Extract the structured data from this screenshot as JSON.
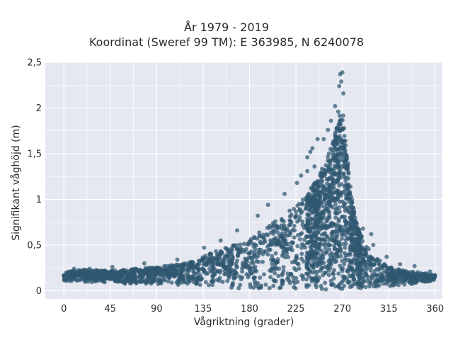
{
  "chart_data": {
    "type": "scatter",
    "title": "År 1979 - 2019",
    "subtitle": "Koordinat (Sweref 99 TM): E 363985, N 6240078",
    "xlabel": "Vågriktning (grader)",
    "ylabel": "Signifikant våghöjd (m)",
    "xlim": [
      -18,
      367
    ],
    "ylim": [
      -0.09,
      2.5
    ],
    "x_ticks": [
      0,
      45,
      90,
      135,
      180,
      225,
      270,
      315,
      360
    ],
    "x_tick_labels": [
      "0",
      "45",
      "90",
      "135",
      "180",
      "225",
      "270",
      "315",
      "360"
    ],
    "y_ticks": [
      0,
      0.5,
      1,
      1.5,
      2,
      2.5
    ],
    "y_tick_labels": [
      "0",
      "0,5",
      "1",
      "1,5",
      "2",
      "2,5"
    ],
    "grid": true,
    "series": [
      {
        "marker_color": "#2f5870",
        "envelope": {
          "x": [
            0,
            10,
            20,
            45,
            90,
            120,
            135,
            150,
            165,
            180,
            195,
            210,
            225,
            235,
            245,
            250,
            255,
            260,
            262,
            264,
            266,
            268,
            270,
            272,
            274,
            276,
            278,
            280,
            285,
            290,
            300,
            315,
            330,
            345,
            360
          ],
          "y_upper": [
            0.2,
            0.22,
            0.23,
            0.22,
            0.26,
            0.3,
            0.38,
            0.45,
            0.5,
            0.58,
            0.68,
            0.8,
            0.93,
            1.05,
            1.22,
            1.35,
            1.45,
            1.6,
            1.7,
            1.78,
            1.85,
            1.95,
            2.05,
            1.75,
            1.55,
            1.35,
            1.15,
            0.95,
            0.72,
            0.55,
            0.38,
            0.26,
            0.22,
            0.2,
            0.17
          ],
          "y_lower": [
            0.11,
            0.1,
            0.09,
            0.08,
            0.07,
            0.06,
            0.05,
            0.04,
            0.03,
            0.02,
            0.02,
            0.01,
            0.01,
            0.01,
            0.01,
            0.01,
            0.01,
            0.01,
            0.01,
            0.01,
            0.01,
            0.01,
            0.01,
            0.01,
            0.01,
            0.01,
            0.01,
            0.01,
            0.02,
            0.03,
            0.04,
            0.05,
            0.06,
            0.08,
            0.11
          ]
        },
        "outliers": [
          {
            "x": 270,
            "y": 2.39
          },
          {
            "x": 268,
            "y": 2.37
          },
          {
            "x": 269,
            "y": 2.29
          },
          {
            "x": 267,
            "y": 2.24
          },
          {
            "x": 271,
            "y": 2.16
          },
          {
            "x": 263,
            "y": 2.02
          },
          {
            "x": 266,
            "y": 1.96
          },
          {
            "x": 259,
            "y": 1.86
          },
          {
            "x": 256,
            "y": 1.76
          },
          {
            "x": 252,
            "y": 1.66
          },
          {
            "x": 246,
            "y": 1.66
          },
          {
            "x": 241,
            "y": 1.56
          },
          {
            "x": 239,
            "y": 1.52
          },
          {
            "x": 236,
            "y": 1.46
          },
          {
            "x": 243,
            "y": 1.36
          },
          {
            "x": 236,
            "y": 1.31
          },
          {
            "x": 230,
            "y": 1.26
          },
          {
            "x": 226,
            "y": 1.18
          },
          {
            "x": 214,
            "y": 1.06
          },
          {
            "x": 198,
            "y": 0.94
          },
          {
            "x": 188,
            "y": 0.82
          },
          {
            "x": 168,
            "y": 0.66
          },
          {
            "x": 152,
            "y": 0.55
          },
          {
            "x": 136,
            "y": 0.47
          },
          {
            "x": 110,
            "y": 0.34
          },
          {
            "x": 78,
            "y": 0.3
          },
          {
            "x": 47,
            "y": 0.26
          },
          {
            "x": 10,
            "y": 0.24
          },
          {
            "x": 25,
            "y": 0.24
          },
          {
            "x": 290,
            "y": 0.68
          },
          {
            "x": 300,
            "y": 0.5
          },
          {
            "x": 298,
            "y": 0.62
          },
          {
            "x": 313,
            "y": 0.37
          },
          {
            "x": 326,
            "y": 0.29
          },
          {
            "x": 340,
            "y": 0.27
          },
          {
            "x": 355,
            "y": 0.21
          }
        ]
      }
    ]
  }
}
